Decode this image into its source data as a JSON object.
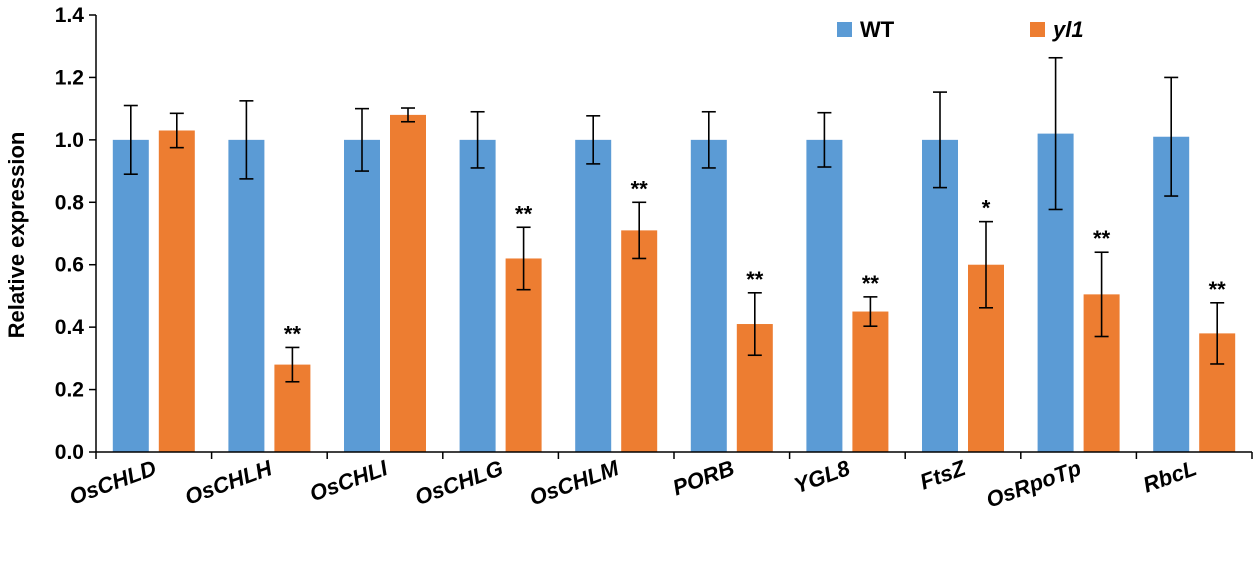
{
  "chart_data": {
    "type": "bar",
    "title": "",
    "xlabel": "",
    "ylabel": "Relative expression",
    "ylim": [
      0,
      1.4
    ],
    "yticks": [
      0.0,
      0.2,
      0.4,
      0.6,
      0.8,
      1.0,
      1.2,
      1.4
    ],
    "ytick_labels": [
      "0.0",
      "0.2",
      "0.4",
      "0.6",
      "0.8",
      "1.0",
      "1.2",
      "1.4"
    ],
    "grid": false,
    "legend_position": "top-right",
    "categories": [
      "OsCHLD",
      "OsCHLH",
      "OsCHLI",
      "OsCHLG",
      "OsCHLM",
      "PORB",
      "YGL8",
      "FtsZ",
      "OsRpoTp",
      "RbcL"
    ],
    "series": [
      {
        "name": "WT",
        "color": "#5b9bd5",
        "values": [
          1.0,
          1.0,
          1.0,
          1.0,
          1.0,
          1.0,
          1.0,
          1.0,
          1.02,
          1.01
        ],
        "errors": [
          0.11,
          0.125,
          0.1,
          0.09,
          0.077,
          0.09,
          0.087,
          0.153,
          0.243,
          0.19
        ],
        "significance": [
          "",
          "",
          "",
          "",
          "",
          "",
          "",
          "",
          "",
          ""
        ]
      },
      {
        "name": "yl1",
        "color": "#ed7d31",
        "values": [
          1.03,
          0.28,
          1.08,
          0.62,
          0.71,
          0.41,
          0.45,
          0.6,
          0.505,
          0.38
        ],
        "errors": [
          0.055,
          0.055,
          0.022,
          0.1,
          0.09,
          0.1,
          0.047,
          0.138,
          0.135,
          0.098
        ],
        "significance": [
          "",
          "**",
          "",
          "**",
          "**",
          "**",
          "**",
          "*",
          "**",
          "**"
        ]
      }
    ]
  }
}
